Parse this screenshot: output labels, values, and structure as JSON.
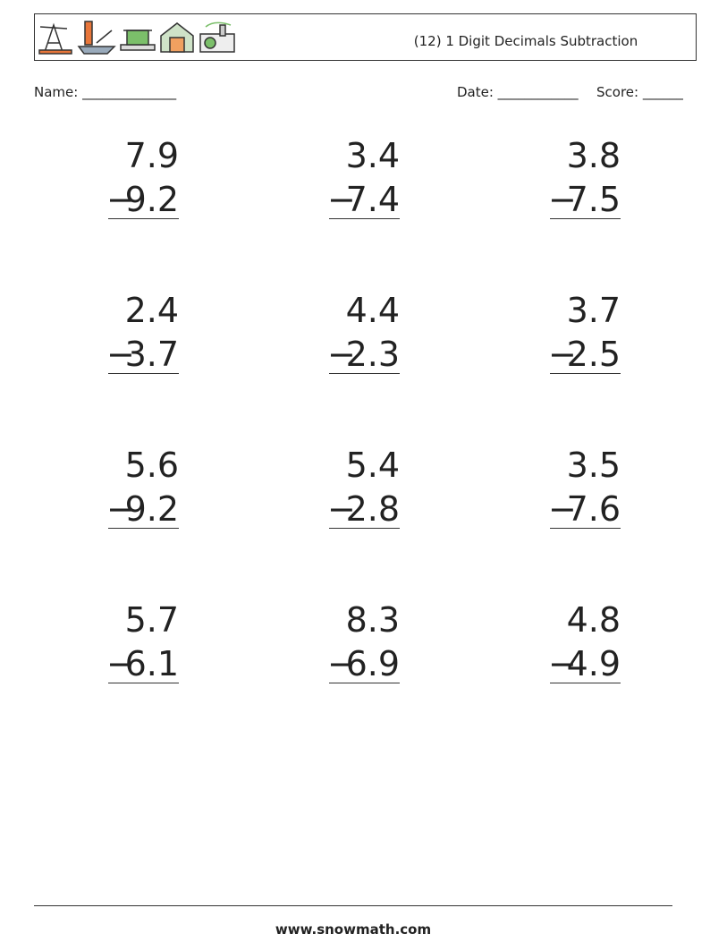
{
  "header": {
    "title": "(12) 1 Digit Decimals Subtraction"
  },
  "fields": {
    "name": "Name: ______________",
    "date": "Date: ____________",
    "score": "Score: ______"
  },
  "problems": [
    {
      "top": 7.9,
      "operator": "−",
      "bottom": 9.2
    },
    {
      "top": 3.4,
      "operator": "−",
      "bottom": 7.4
    },
    {
      "top": 3.8,
      "operator": "−",
      "bottom": 7.5
    },
    {
      "top": 2.4,
      "operator": "−",
      "bottom": 3.7
    },
    {
      "top": 4.4,
      "operator": "−",
      "bottom": 2.3
    },
    {
      "top": 3.7,
      "operator": "−",
      "bottom": 2.5
    },
    {
      "top": 5.6,
      "operator": "−",
      "bottom": 9.2
    },
    {
      "top": 5.4,
      "operator": "−",
      "bottom": 2.8
    },
    {
      "top": 3.5,
      "operator": "−",
      "bottom": 7.6
    },
    {
      "top": 5.7,
      "operator": "−",
      "bottom": 6.1
    },
    {
      "top": 8.3,
      "operator": "−",
      "bottom": 6.9
    },
    {
      "top": 4.8,
      "operator": "−",
      "bottom": 4.9
    }
  ],
  "footer": {
    "url": "www.snowmath.com"
  }
}
